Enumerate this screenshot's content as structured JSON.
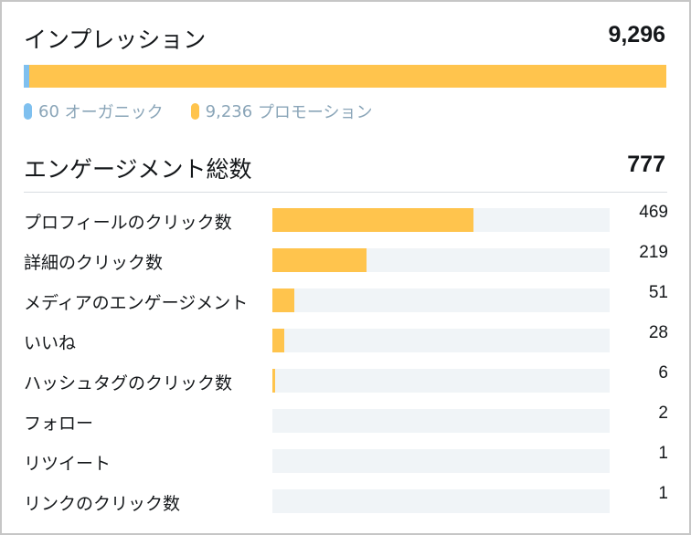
{
  "impressions": {
    "title": "インプレッション",
    "total": "9,296",
    "organic": {
      "count": "60",
      "label": "オーガニック",
      "value": 60,
      "color": "#7fc0ef"
    },
    "promoted": {
      "count": "9,236",
      "label": "プロモーション",
      "value": 9236,
      "color": "#ffc44d"
    }
  },
  "engagements": {
    "title": "エンゲージメント総数",
    "total": "777",
    "max_value": 469,
    "rows": [
      {
        "label": "プロフィールのクリック数",
        "value": "469",
        "amount": 469
      },
      {
        "label": "詳細のクリック数",
        "value": "219",
        "amount": 219
      },
      {
        "label": "メディアのエンゲージメント",
        "value": "51",
        "amount": 51
      },
      {
        "label": "いいね",
        "value": "28",
        "amount": 28
      },
      {
        "label": "ハッシュタグのクリック数",
        "value": "6",
        "amount": 6
      },
      {
        "label": "フォロー",
        "value": "2",
        "amount": 2
      },
      {
        "label": "リツイート",
        "value": "1",
        "amount": 1
      },
      {
        "label": "リンクのクリック数",
        "value": "1",
        "amount": 1
      }
    ]
  }
}
